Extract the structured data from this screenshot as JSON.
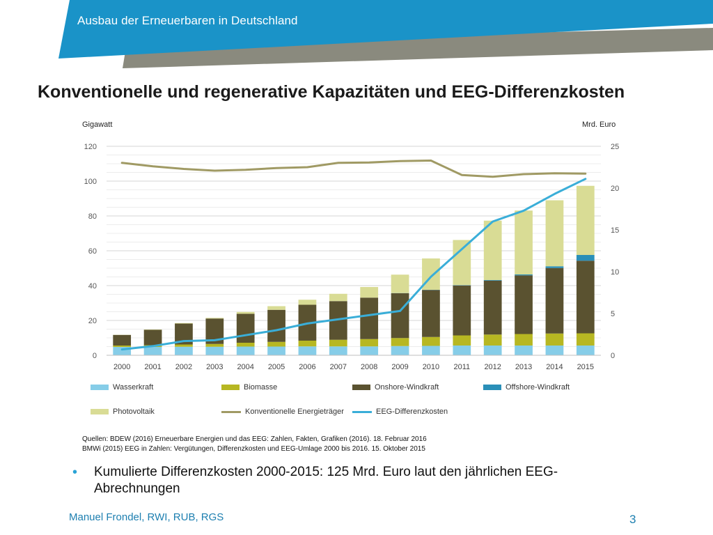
{
  "header": {
    "banner_title": "Ausbau der Erneuerbaren in Deutschland",
    "banner_color": "#1a93c8",
    "banner_stripe_color": "#8a8a7e"
  },
  "slide_title": "Konventionelle und regenerative Kapazitäten und EEG-Differenzkosten",
  "chart_data": {
    "type": "bar",
    "stacked": true,
    "title": "",
    "ylabel_left": "Gigawatt",
    "ylabel_right": "Mrd. Euro",
    "ylim_left": [
      0,
      120
    ],
    "ylim_right": [
      0,
      25
    ],
    "yticks_left": [
      "0",
      "20",
      "40",
      "60",
      "80",
      "100",
      "120"
    ],
    "yticks_right": [
      "0",
      "5",
      "10",
      "15",
      "20",
      "25"
    ],
    "grid": true,
    "legend_position": "bottom",
    "categories": [
      "2000",
      "2001",
      "2002",
      "2003",
      "2004",
      "2005",
      "2006",
      "2007",
      "2008",
      "2009",
      "2010",
      "2011",
      "2012",
      "2013",
      "2014",
      "2015"
    ],
    "series": [
      {
        "name": "Wasserkraft",
        "type": "bar",
        "axis": "left",
        "color": "#86cde8",
        "values": [
          4.8,
          4.8,
          4.9,
          4.9,
          5.0,
          5.0,
          5.1,
          5.1,
          5.1,
          5.3,
          5.4,
          5.6,
          5.6,
          5.6,
          5.6,
          5.6
        ]
      },
      {
        "name": "Biomasse",
        "type": "bar",
        "axis": "left",
        "color": "#b7b722",
        "values": [
          0.8,
          1.0,
          1.3,
          1.6,
          2.2,
          2.7,
          3.3,
          3.8,
          4.2,
          4.6,
          5.1,
          5.8,
          6.3,
          6.6,
          6.9,
          7.0
        ]
      },
      {
        "name": "Onshore-Windkraft",
        "type": "bar",
        "axis": "left",
        "color": "#5a5230",
        "values": [
          6.1,
          8.8,
          12.0,
          14.6,
          16.6,
          18.4,
          20.6,
          22.2,
          23.8,
          25.7,
          27.0,
          28.7,
          31.0,
          33.7,
          37.6,
          41.7
        ]
      },
      {
        "name": "Offshore-Windkraft",
        "type": "bar",
        "axis": "left",
        "color": "#2a8fb8",
        "values": [
          0,
          0,
          0,
          0,
          0,
          0,
          0,
          0,
          0,
          0.1,
          0.1,
          0.2,
          0.3,
          0.5,
          1.0,
          3.3
        ]
      },
      {
        "name": "Photovoltaik",
        "type": "bar",
        "axis": "left",
        "color": "#d9dc95",
        "values": [
          0.1,
          0.2,
          0.3,
          0.4,
          1.1,
          2.1,
          2.9,
          4.2,
          6.1,
          10.6,
          18.0,
          25.9,
          34.1,
          36.7,
          37.9,
          39.7
        ]
      },
      {
        "name": "Konventionelle Energieträger",
        "type": "line",
        "axis": "left",
        "color": "#a09a64",
        "values": [
          110.5,
          108.5,
          107.0,
          106.0,
          106.5,
          107.5,
          108.0,
          110.5,
          110.7,
          111.5,
          111.8,
          103.5,
          102.5,
          104.0,
          104.5,
          104.3
        ]
      },
      {
        "name": "EEG-Differenzkosten",
        "type": "line",
        "axis": "right",
        "color": "#3aaed8",
        "values": [
          0.7,
          1.1,
          1.7,
          1.8,
          2.4,
          3.0,
          3.8,
          4.3,
          4.8,
          5.3,
          9.4,
          12.7,
          16.0,
          17.3,
          19.3,
          21.1
        ]
      }
    ]
  },
  "sources": {
    "line1": "Quellen: BDEW (2016) Erneuerbare Energien und das  EEG: Zahlen, Fakten, Grafiken (2016). 18. Februar 2016",
    "line2": "BMWi (2015) EEG in Zahlen: Vergütungen, Differenzkosten und EEG-Umlage 2000 bis 2016. 15. Oktober 2015"
  },
  "bullet": {
    "text": "Kumulierte Differenzkosten 2000-2015:  125 Mrd. Euro laut den jährlichen EEG-Abrechnungen",
    "marker": "•"
  },
  "footer": {
    "author": "Manuel Frondel, RWI, RUB, RGS",
    "page": "3"
  }
}
